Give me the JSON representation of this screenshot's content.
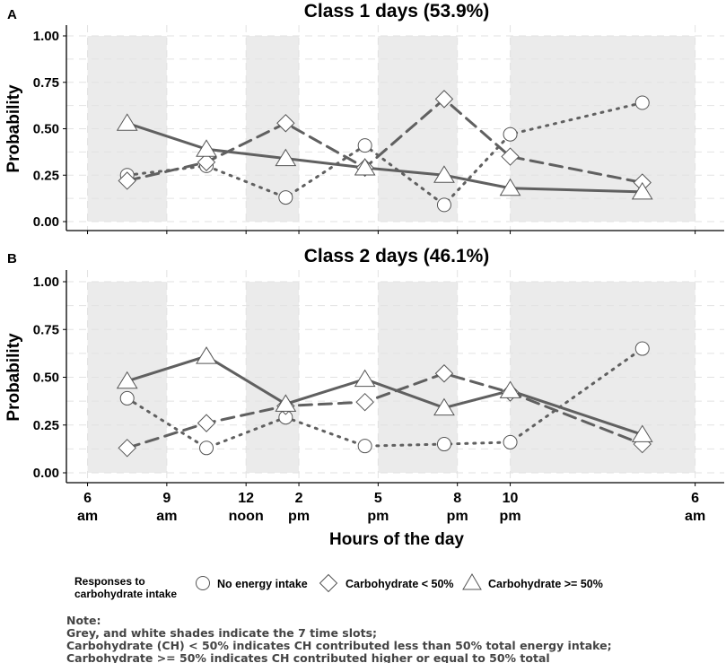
{
  "chart_data": [
    {
      "type": "line",
      "panel": "A",
      "title": "Class 1 days (53.9%)",
      "ylabel": "Probability",
      "ylim": [
        0,
        1
      ],
      "yticks": [
        "0.00",
        "0.25",
        "0.50",
        "0.75",
        "1.00"
      ],
      "series": [
        {
          "name": "No energy intake",
          "x": [
            7.5,
            10.5,
            13.5,
            16.5,
            19.5,
            22.0,
            27.0
          ],
          "values": [
            0.25,
            0.3,
            0.13,
            0.41,
            0.09,
            0.47,
            0.64
          ]
        },
        {
          "name": "Carbohydrate < 50%",
          "x": [
            7.5,
            10.5,
            13.5,
            16.5,
            19.5,
            22.0,
            27.0
          ],
          "values": [
            0.22,
            0.32,
            0.53,
            0.29,
            0.66,
            0.35,
            0.21
          ]
        },
        {
          "name": "Carbohydrate >= 50%",
          "x": [
            7.5,
            10.5,
            13.5,
            16.5,
            19.5,
            22.0,
            27.0
          ],
          "values": [
            0.53,
            0.39,
            0.34,
            0.29,
            0.25,
            0.18,
            0.16
          ]
        }
      ]
    },
    {
      "type": "line",
      "panel": "B",
      "title": "Class 2 days (46.1%)",
      "xlabel": "Hours of the day",
      "ylabel": "Probability",
      "ylim": [
        0,
        1
      ],
      "yticks": [
        "0.00",
        "0.25",
        "0.50",
        "0.75",
        "1.00"
      ],
      "xticks": [
        {
          "value": 6,
          "line1": "6",
          "line2": "am"
        },
        {
          "value": 9,
          "line1": "9",
          "line2": "am"
        },
        {
          "value": 12,
          "line1": "12",
          "line2": "noon"
        },
        {
          "value": 14,
          "line1": "2",
          "line2": "pm"
        },
        {
          "value": 17,
          "line1": "5",
          "line2": "pm"
        },
        {
          "value": 20,
          "line1": "8",
          "line2": "pm"
        },
        {
          "value": 22,
          "line1": "10",
          "line2": "pm"
        },
        {
          "value": 29,
          "line1": "6",
          "line2": "am"
        }
      ],
      "series": [
        {
          "name": "No energy intake",
          "x": [
            7.5,
            10.5,
            13.5,
            16.5,
            19.5,
            22.0,
            27.0
          ],
          "values": [
            0.39,
            0.13,
            0.29,
            0.14,
            0.15,
            0.16,
            0.65
          ]
        },
        {
          "name": "Carbohydrate < 50%",
          "x": [
            7.5,
            10.5,
            13.5,
            16.5,
            19.5,
            22.0,
            27.0
          ],
          "values": [
            0.13,
            0.26,
            0.35,
            0.37,
            0.52,
            0.42,
            0.15
          ]
        },
        {
          "name": "Carbohydrate >= 50%",
          "x": [
            7.5,
            10.5,
            13.5,
            16.5,
            19.5,
            22.0,
            27.0
          ],
          "values": [
            0.48,
            0.61,
            0.36,
            0.49,
            0.34,
            0.43,
            0.2
          ]
        }
      ]
    }
  ],
  "shaded_slots": [
    [
      6,
      9
    ],
    [
      12,
      14
    ],
    [
      17,
      20
    ],
    [
      22,
      29
    ]
  ],
  "xlim": [
    5.2,
    30.1
  ],
  "legend": {
    "title_line1": "Responses to",
    "title_line2": "carbohydrate intake",
    "items": [
      {
        "label": "No energy intake",
        "marker": "circle"
      },
      {
        "label": "Carbohydrate < 50%",
        "marker": "diamond"
      },
      {
        "label": "Carbohydrate >= 50%",
        "marker": "triangle"
      }
    ]
  },
  "note": {
    "lines": [
      "Note:",
      "Grey, and white shades indicate the 7 time slots;",
      "Carbohydrate (CH) < 50% indicates CH contributed less than 50% total energy intake;",
      "Carbohydrate >= 50% indicates CH contributed higher or equal to 50% total"
    ]
  },
  "colors": {
    "shade": "#ebebeb",
    "grid": "#e2e2e2",
    "line": "#606060",
    "marker_stroke": "#555555",
    "note_text": "#444444"
  }
}
